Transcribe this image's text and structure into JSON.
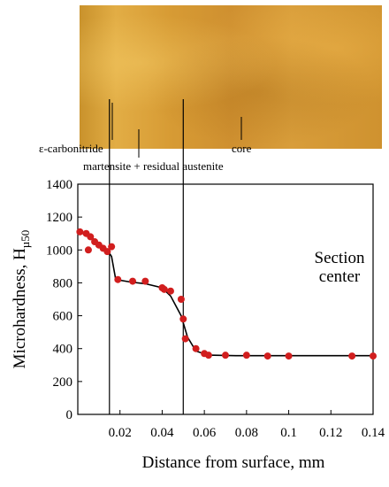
{
  "micrograph": {
    "labels": {
      "carbonitride": "ε-carbonitride",
      "martensite": "martensite + residual austenite",
      "core": "core"
    }
  },
  "chart_data": {
    "type": "line",
    "xlabel": "Distance from surface, mm",
    "ylabel": "Microhardness, H",
    "ylabel_sub": "µ50",
    "xlim": [
      0,
      0.14
    ],
    "ylim": [
      0,
      1400
    ],
    "xticks": [
      0.02,
      0.04,
      0.06,
      0.08,
      0.1,
      0.12,
      0.14
    ],
    "xtick_labels": [
      "0.02",
      "0.04",
      "0.06",
      "0.08",
      "0.1",
      "0.12",
      "0.14"
    ],
    "yticks": [
      0,
      200,
      400,
      600,
      800,
      1000,
      1200,
      1400
    ],
    "ytick_labels": [
      "0",
      "200",
      "400",
      "600",
      "800",
      "1000",
      "1200",
      "1400"
    ],
    "annotation_lines": [
      "Section",
      "center"
    ],
    "boundaries": [
      0.015,
      0.05
    ],
    "markers": {
      "x": [
        0.001,
        0.004,
        0.006,
        0.008,
        0.01,
        0.012,
        0.014,
        0.016,
        0.005,
        0.019,
        0.026,
        0.032,
        0.04,
        0.041,
        0.044,
        0.049,
        0.05,
        0.051,
        0.056,
        0.06,
        0.062,
        0.07,
        0.08,
        0.09,
        0.1,
        0.13,
        0.14
      ],
      "y": [
        1110,
        1100,
        1080,
        1050,
        1030,
        1010,
        990,
        1020,
        1000,
        820,
        810,
        810,
        770,
        760,
        750,
        700,
        580,
        460,
        400,
        370,
        360,
        360,
        360,
        355,
        355,
        355,
        355
      ]
    },
    "curve": {
      "x": [
        0.0,
        0.005,
        0.01,
        0.014,
        0.016,
        0.018,
        0.025,
        0.032,
        0.04,
        0.044,
        0.049,
        0.052,
        0.056,
        0.062,
        0.075,
        0.14
      ],
      "y": [
        1110,
        1090,
        1040,
        1000,
        960,
        820,
        805,
        795,
        770,
        720,
        600,
        470,
        385,
        360,
        357,
        357
      ]
    },
    "colors": {
      "marker": "#d11e1e",
      "line": "#000000"
    }
  }
}
